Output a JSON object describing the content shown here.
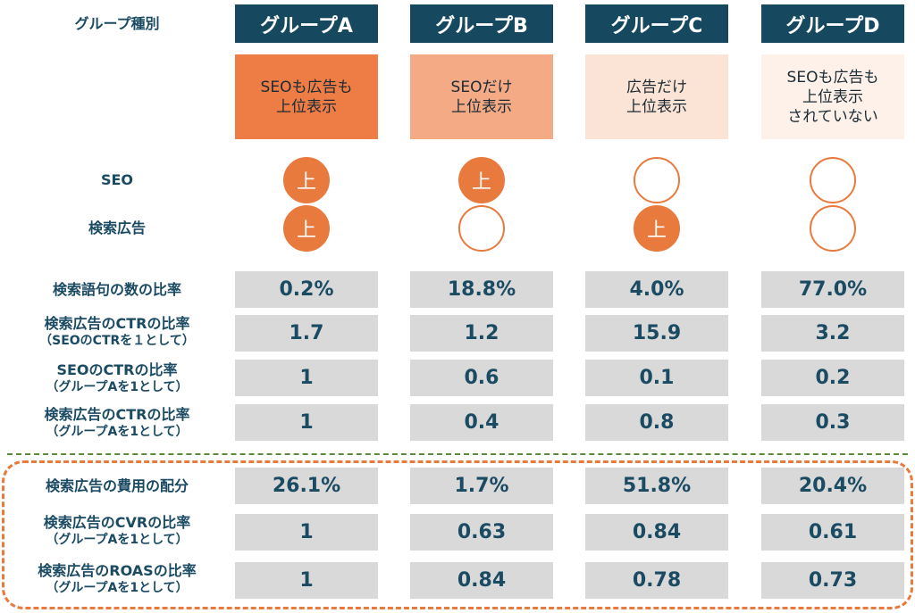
{
  "header_label": "グループ種別",
  "groups": [
    {
      "name": "グループA",
      "desc": [
        "SEOも広告も",
        "上位表示"
      ],
      "color": "#ed7d45",
      "seo": "上",
      "ad": "上"
    },
    {
      "name": "グループB",
      "desc": [
        "SEOだけ",
        "上位表示"
      ],
      "color": "#f3aa85",
      "seo": "上",
      "ad": ""
    },
    {
      "name": "グループC",
      "desc": [
        "広告だけ",
        "上位表示"
      ],
      "color": "#fbe3d5",
      "seo": "",
      "ad": "上"
    },
    {
      "name": "グループD",
      "desc": [
        "SEOも広告も",
        "上位表示",
        "されていない"
      ],
      "color": "#fdf1ea",
      "seo": "",
      "ad": ""
    }
  ],
  "row_labels": {
    "seo": "SEO",
    "ad": "検索広告",
    "search_share": "検索語句の数の比率",
    "ad_ctr": {
      "main": "検索広告のCTRの比率",
      "sub": "（SEOのCTRを１として）"
    },
    "seo_ctr": {
      "main": "SEOのCTRの比率",
      "sub": "（グループAを1として）"
    },
    "ad_ctr_a": {
      "main": "検索広告のCTRの比率",
      "sub": "（グループAを1として）"
    },
    "spend": "検索広告の費用の配分",
    "cvr": {
      "main": "検索広告のCVRの比率",
      "sub": "（グループAを1として）"
    },
    "roas": {
      "main": "検索広告のROASの比率",
      "sub": "（グループAを1として）"
    }
  },
  "table": {
    "search_share": [
      "0.2%",
      "18.8%",
      "4.0%",
      "77.0%"
    ],
    "ad_ctr": [
      "1.7",
      "1.2",
      "15.9",
      "3.2"
    ],
    "seo_ctr": [
      "1",
      "0.6",
      "0.1",
      "0.2"
    ],
    "ad_ctr_a": [
      "1",
      "0.4",
      "0.8",
      "0.3"
    ],
    "spend": [
      "26.1%",
      "1.7%",
      "51.8%",
      "20.4%"
    ],
    "cvr": [
      "1",
      "0.63",
      "0.84",
      "0.61"
    ],
    "roas": [
      "1",
      "0.84",
      "0.78",
      "0.73"
    ]
  },
  "colors": {
    "navy": "#164960",
    "orange": "#e97a3d",
    "cell_gray": "#d9d9d9",
    "divider_green": "#5a8a3a"
  }
}
